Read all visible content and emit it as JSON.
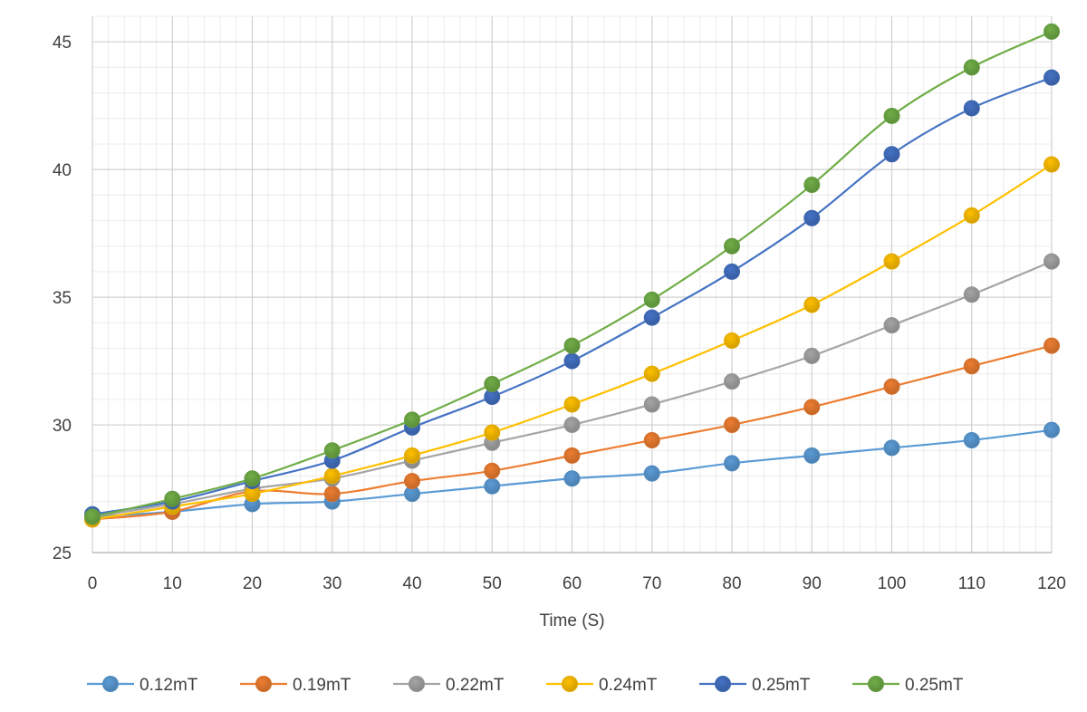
{
  "chart_data": {
    "type": "line",
    "title": "",
    "xlabel": "Time (S)",
    "ylabel": "",
    "x": [
      0,
      10,
      20,
      30,
      40,
      50,
      60,
      70,
      80,
      90,
      100,
      110,
      120
    ],
    "xlim": [
      0,
      120
    ],
    "ylim": [
      25,
      46
    ],
    "x_ticks": [
      "0",
      "10",
      "20",
      "30",
      "40",
      "50",
      "60",
      "70",
      "80",
      "90",
      "100",
      "110",
      "120"
    ],
    "y_ticks": [
      "25",
      "30",
      "35",
      "40",
      "45"
    ],
    "grid": "major and minor",
    "smooth": true,
    "legend_position": "bottom",
    "series": [
      {
        "name": "0.12mT",
        "color": "#5B9BD5",
        "values": [
          26.4,
          26.6,
          26.9,
          27.0,
          27.3,
          27.6,
          27.9,
          28.1,
          28.5,
          28.8,
          29.1,
          29.4,
          29.8
        ]
      },
      {
        "name": "0.19mT",
        "color": "#ED7D31",
        "values": [
          26.3,
          26.6,
          27.4,
          27.3,
          27.8,
          28.2,
          28.8,
          29.4,
          30.0,
          30.7,
          31.5,
          32.3,
          33.1
        ]
      },
      {
        "name": "0.22mT",
        "color": "#A5A5A5",
        "values": [
          26.4,
          26.9,
          27.5,
          27.9,
          28.6,
          29.3,
          30.0,
          30.8,
          31.7,
          32.7,
          33.9,
          35.1,
          36.4
        ]
      },
      {
        "name": "0.24mT",
        "color": "#FFC000",
        "values": [
          26.3,
          26.8,
          27.3,
          28.0,
          28.8,
          29.7,
          30.8,
          32.0,
          33.3,
          34.7,
          36.4,
          38.2,
          40.2
        ]
      },
      {
        "name": "0.25mT",
        "color": "#4472C4",
        "values": [
          26.5,
          27.0,
          27.8,
          28.6,
          29.9,
          31.1,
          32.5,
          34.2,
          36.0,
          38.1,
          40.6,
          42.4,
          43.6
        ]
      },
      {
        "name": "0.25mT",
        "color": "#70AD47",
        "values": [
          26.4,
          27.1,
          27.9,
          29.0,
          30.2,
          31.6,
          33.1,
          34.9,
          37.0,
          39.4,
          42.1,
          44.0,
          45.4
        ]
      }
    ]
  }
}
